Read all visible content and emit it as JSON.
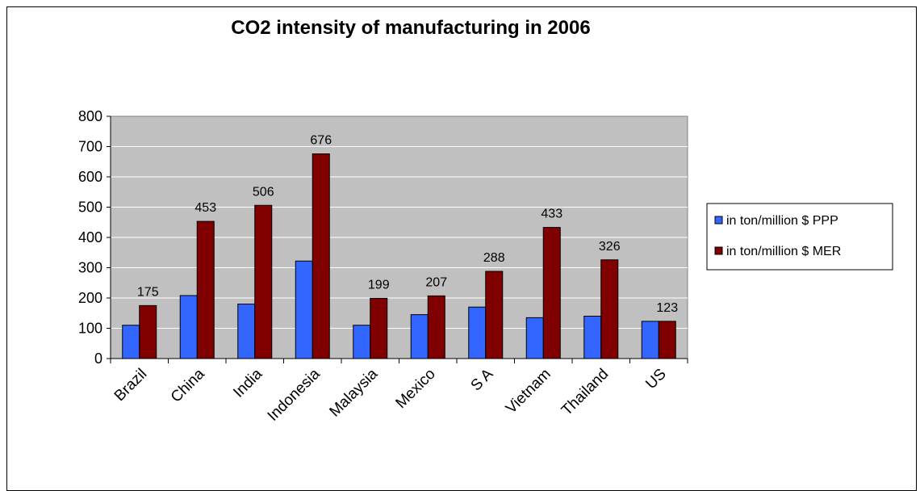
{
  "chart_data": {
    "type": "bar",
    "title": "CO2 intensity of manufacturing in 2006",
    "xlabel": "",
    "ylabel": "",
    "ylim": [
      0,
      800
    ],
    "yticks": [
      0,
      100,
      200,
      300,
      400,
      500,
      600,
      700,
      800
    ],
    "grid": true,
    "legend_position": "right",
    "categories": [
      "Brazil",
      "China",
      "India",
      "Indonesia",
      "Malaysia",
      "Mexico",
      "S A",
      "Vietnam",
      "Thailand",
      "US"
    ],
    "series": [
      {
        "name": "in ton/million $ PPP",
        "color": "#3366FF",
        "values": [
          110,
          208,
          180,
          322,
          110,
          145,
          170,
          135,
          140,
          123
        ]
      },
      {
        "name": "in ton/million $ MER",
        "color": "#800000",
        "values": [
          175,
          453,
          506,
          676,
          199,
          207,
          288,
          433,
          326,
          123
        ],
        "data_labels": [
          "175",
          "453",
          "506",
          "676",
          "199",
          "207",
          "288",
          "433",
          "326",
          "123"
        ]
      }
    ],
    "colors": {
      "plot_background": "#C0C0C0",
      "gridline": "#FFFFFF",
      "bar_outline": "#000000"
    }
  }
}
